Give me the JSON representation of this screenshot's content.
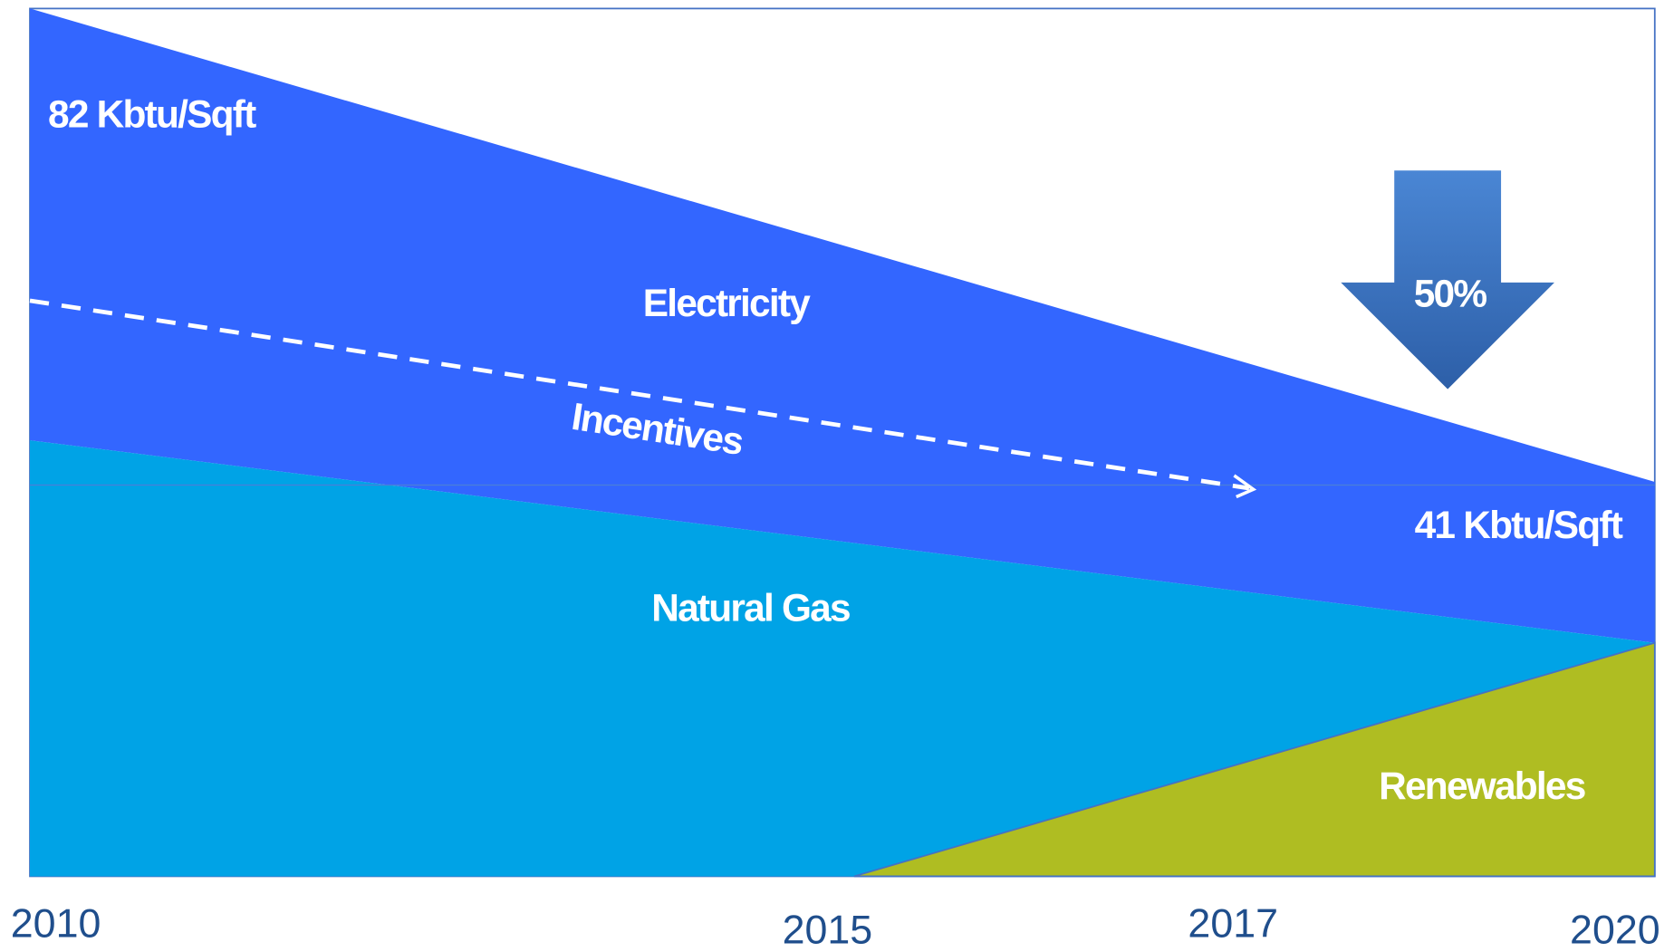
{
  "start_label": "82 Kbtu/Sqft",
  "end_label": "41 Kbtu/Sqft",
  "reduction_label": "50%",
  "areas": {
    "electricity": "Electricity",
    "natural_gas": "Natural Gas",
    "renewables": "Renewables"
  },
  "incentives": "Incentives",
  "years": [
    "2010",
    "2015",
    "2017",
    "2020"
  ]
}
